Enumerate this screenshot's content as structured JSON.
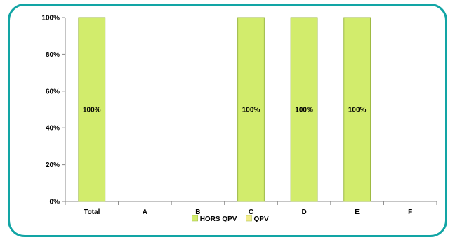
{
  "chart_data": {
    "type": "bar",
    "stacked": true,
    "categories": [
      "Total",
      "A",
      "B",
      "C",
      "D",
      "E",
      "F"
    ],
    "series": [
      {
        "name": "HORS QPV",
        "values": [
          100,
          0,
          0,
          100,
          100,
          100,
          0
        ],
        "color": "#d2ec6c",
        "labels": [
          "100%",
          "",
          "",
          "100%",
          "100%",
          "100%",
          ""
        ]
      },
      {
        "name": "QPV",
        "values": [
          0,
          0,
          0,
          0,
          0,
          0,
          0
        ],
        "color": "#f3ec8a",
        "labels": [
          "",
          "",
          "",
          "",
          "",
          "",
          ""
        ]
      }
    ],
    "ylim": [
      0,
      100
    ],
    "yticks": [
      "0%",
      "20%",
      "40%",
      "60%",
      "80%",
      "100%"
    ],
    "legend_position": "bottom",
    "grid": false
  },
  "colors": {
    "frame": "#12a5a5",
    "axis": "#888888"
  }
}
